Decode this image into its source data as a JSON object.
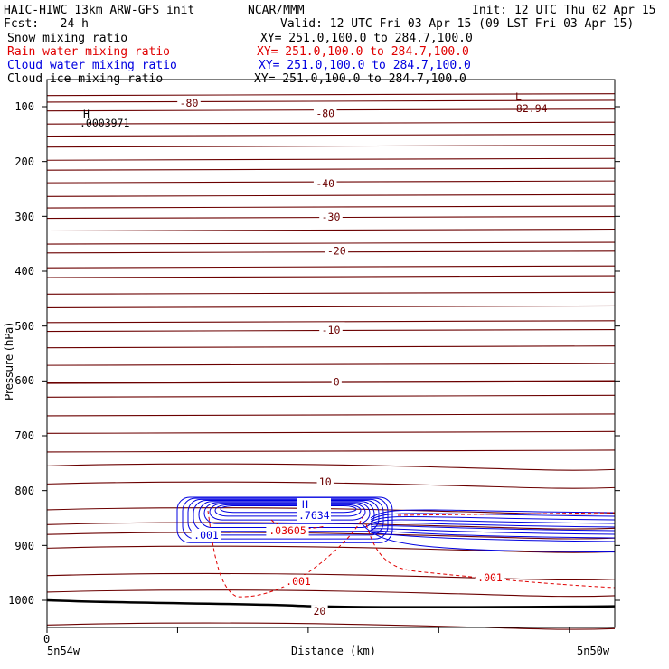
{
  "header": {
    "model": "HAIC-HIWC 13km ARW-GFS init",
    "center": "NCAR/MMM",
    "init": "Init: 12 UTC Thu 02 Apr 15",
    "fcst": "Fcst:   24 h",
    "valid": "Valid: 12 UTC Fri 03 Apr 15 (09 LST Fri 03 Apr 15)",
    "fields": [
      {
        "name": "Snow mixing ratio",
        "xy": "XY= 251.0,100.0 to 284.7,100.0",
        "color": "#000000"
      },
      {
        "name": "Rain water mixing ratio",
        "xy": "XY= 251.0,100.0 to 284.7,100.0",
        "color": "#e00000"
      },
      {
        "name": "Cloud water mixing ratio",
        "xy": "XY= 251.0,100.0 to 284.7,100.0",
        "color": "#0000e0"
      },
      {
        "name": "Cloud ice mixing ratio",
        "xy": "XY= 251.0,100.0 to 284.7,100.0",
        "color": "#000000"
      }
    ]
  },
  "chart_data": {
    "type": "line",
    "title": "",
    "xlabel": "Distance (km)",
    "ylabel": "Pressure (hPa)",
    "x_left_label": "5n54w",
    "x_right_label": "5n50w",
    "x_zero_label": "0",
    "yticks": [
      "100",
      "200",
      "300",
      "400",
      "500",
      "600",
      "700",
      "800",
      "900",
      "1000"
    ],
    "ylim": [
      1050,
      70
    ],
    "temperature_labels": [
      {
        "text": "-80",
        "p": 93,
        "x": 0.25
      },
      {
        "text": "-80",
        "p": 112,
        "x": 0.49
      },
      {
        "text": "-40",
        "p": 240,
        "x": 0.49
      },
      {
        "text": "-30",
        "p": 301,
        "x": 0.5
      },
      {
        "text": "-20",
        "p": 363,
        "x": 0.51
      },
      {
        "text": "-10",
        "p": 507,
        "x": 0.5
      },
      {
        "text": "0",
        "p": 602,
        "x": 0.51
      },
      {
        "text": "10",
        "p": 784,
        "x": 0.49
      },
      {
        "text": "20",
        "p": 1020,
        "x": 0.48
      }
    ],
    "temperature_isotherms_p": [
      78,
      90,
      106,
      130,
      152,
      172,
      196,
      214,
      237,
      262,
      283,
      302,
      325,
      349,
      365,
      392,
      410,
      440,
      465,
      492,
      508,
      538,
      570,
      602,
      628,
      662,
      694,
      728,
      755,
      788,
      835,
      862,
      880,
      905,
      955,
      985,
      1045
    ],
    "cloud_water_max": {
      "text": "H",
      "value": ".7634"
    },
    "cloud_water_label": ".001",
    "rain_labels": [
      ".03605",
      ".001",
      ".001"
    ],
    "snow_max": {
      "text": "H",
      "value": ".0003971"
    },
    "temp_min": {
      "text": "L",
      "value": "-82.94"
    },
    "colors": {
      "temperature": "#6b0000",
      "cloud": "#0000e0",
      "rain": "#e00000",
      "ground": "#000000"
    }
  }
}
